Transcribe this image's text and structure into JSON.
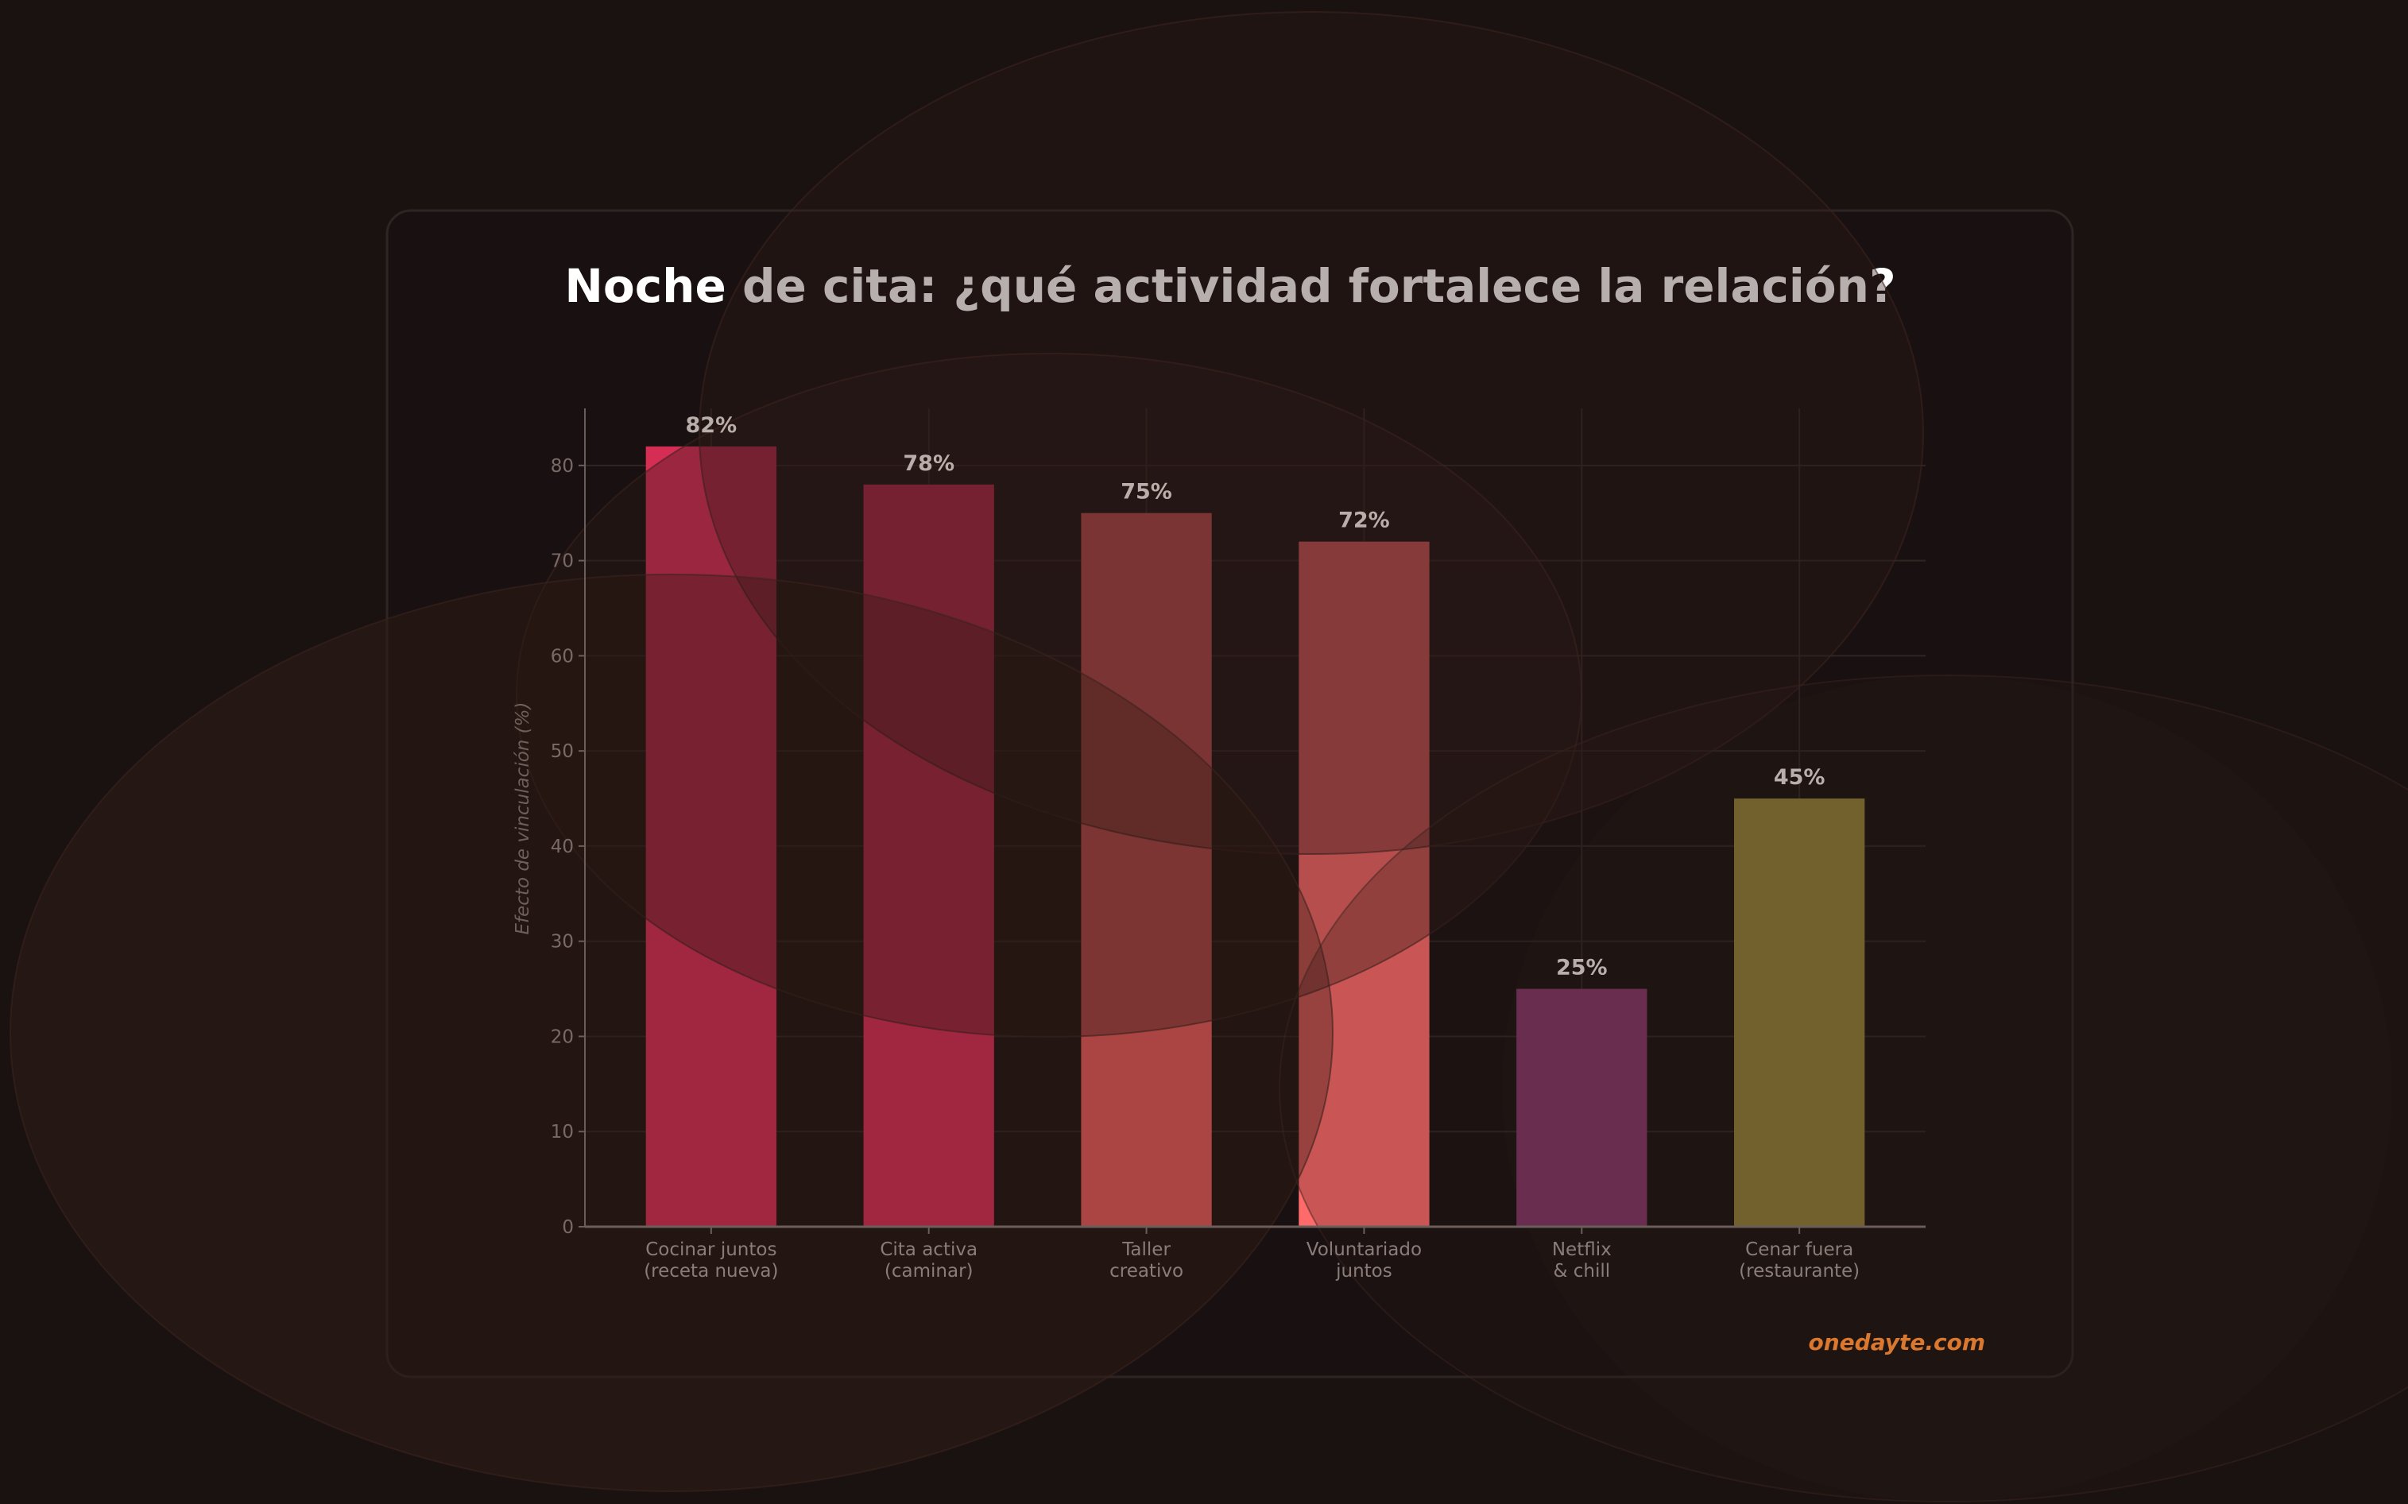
{
  "chart_data": {
    "type": "bar",
    "title": "Noche de cita: ¿qué actividad fortalece la relación?",
    "xlabel": "",
    "ylabel": "Efecto de vinculación (%)",
    "categories": [
      [
        "Cocinar juntos",
        "(receta nueva)"
      ],
      [
        "Cita activa",
        "(caminar)"
      ],
      [
        "Taller",
        "creativo"
      ],
      [
        "Voluntariado",
        "juntos"
      ],
      [
        "Netflix",
        "& chill"
      ],
      [
        "Cenar fuera",
        "(restaurante)"
      ]
    ],
    "values": [
      82,
      78,
      75,
      72,
      25,
      45
    ],
    "data_labels": [
      "82%",
      "78%",
      "75%",
      "72%",
      "25%",
      "45%"
    ],
    "colors": [
      "#d62d55",
      "#d62d55",
      "#e25a5a",
      "#ff6b6b",
      "#7f3565",
      "#8b7a36"
    ],
    "ylim": [
      0,
      86
    ],
    "yticks": [
      0,
      10,
      20,
      30,
      40,
      50,
      60,
      70,
      80
    ],
    "grid": true,
    "legend": "none"
  },
  "watermark": "onedayte.com"
}
